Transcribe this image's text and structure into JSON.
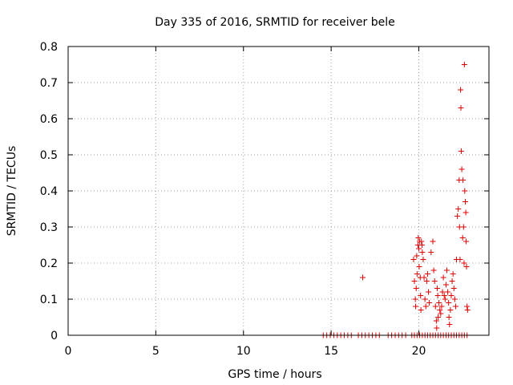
{
  "chart_data": {
    "type": "scatter",
    "title": "Day 335 of 2016, SRMTID for receiver bele",
    "xlabel": "GPS time / hours",
    "ylabel": "SRMTID / TECUs",
    "xlim": [
      0,
      24
    ],
    "ylim": [
      0,
      0.8
    ],
    "xticks": [
      0,
      5,
      10,
      15,
      20
    ],
    "xtick_labels": [
      "0",
      "5",
      "10",
      "15",
      "20"
    ],
    "yticks": [
      0,
      0.1,
      0.2,
      0.3,
      0.4,
      0.5,
      0.6,
      0.7,
      0.8
    ],
    "ytick_labels": [
      "0",
      "0.1",
      "0.2",
      "0.3",
      "0.4",
      "0.5",
      "0.6",
      "0.7",
      "0.8"
    ],
    "grid": true,
    "marker": "+",
    "color": "#e00000",
    "series": [
      {
        "name": "SRMTID",
        "points": [
          [
            14.55,
            0
          ],
          [
            14.75,
            0
          ],
          [
            14.95,
            0
          ],
          [
            15.15,
            0
          ],
          [
            15.35,
            0
          ],
          [
            15.55,
            0
          ],
          [
            15.75,
            0
          ],
          [
            15.95,
            0
          ],
          [
            16.15,
            0
          ],
          [
            16.55,
            0
          ],
          [
            16.75,
            0
          ],
          [
            16.95,
            0
          ],
          [
            17.15,
            0
          ],
          [
            17.35,
            0
          ],
          [
            17.55,
            0
          ],
          [
            17.75,
            0
          ],
          [
            18.25,
            0
          ],
          [
            18.45,
            0
          ],
          [
            18.65,
            0
          ],
          [
            18.85,
            0
          ],
          [
            19.05,
            0
          ],
          [
            19.25,
            0
          ],
          [
            19.6,
            0
          ],
          [
            19.75,
            0
          ],
          [
            19.9,
            0
          ],
          [
            20.05,
            0
          ],
          [
            20.2,
            0
          ],
          [
            20.35,
            0
          ],
          [
            20.5,
            0
          ],
          [
            20.65,
            0
          ],
          [
            20.8,
            0
          ],
          [
            20.95,
            0
          ],
          [
            21.1,
            0
          ],
          [
            21.25,
            0
          ],
          [
            21.4,
            0
          ],
          [
            21.55,
            0
          ],
          [
            21.7,
            0
          ],
          [
            21.85,
            0
          ],
          [
            22.0,
            0
          ],
          [
            22.15,
            0
          ],
          [
            22.3,
            0
          ],
          [
            22.45,
            0
          ],
          [
            22.6,
            0
          ],
          [
            22.75,
            0
          ],
          [
            16.8,
            0.16
          ],
          [
            19.7,
            0.21
          ],
          [
            19.75,
            0.15
          ],
          [
            19.8,
            0.1
          ],
          [
            19.82,
            0.08
          ],
          [
            19.85,
            0.13
          ],
          [
            19.88,
            0.22
          ],
          [
            19.9,
            0.17
          ],
          [
            19.95,
            0.25
          ],
          [
            19.97,
            0.27
          ],
          [
            20.0,
            0.24
          ],
          [
            20.02,
            0.19
          ],
          [
            20.05,
            0.26
          ],
          [
            20.08,
            0.16
          ],
          [
            20.1,
            0.11
          ],
          [
            20.12,
            0.07
          ],
          [
            20.15,
            0.26
          ],
          [
            20.18,
            0.25
          ],
          [
            20.2,
            0.23
          ],
          [
            20.25,
            0.21
          ],
          [
            20.3,
            0.16
          ],
          [
            20.35,
            0.1
          ],
          [
            20.4,
            0.08
          ],
          [
            20.45,
            0.15
          ],
          [
            20.5,
            0.17
          ],
          [
            20.55,
            0.12
          ],
          [
            20.6,
            0.09
          ],
          [
            20.7,
            0.23
          ],
          [
            20.8,
            0.26
          ],
          [
            20.85,
            0.18
          ],
          [
            20.9,
            0.15
          ],
          [
            20.95,
            0.08
          ],
          [
            21.0,
            0.04
          ],
          [
            21.02,
            0.02
          ],
          [
            21.05,
            0.13
          ],
          [
            21.08,
            0.11
          ],
          [
            21.1,
            0.05
          ],
          [
            21.15,
            0.09
          ],
          [
            21.2,
            0.07
          ],
          [
            21.25,
            0.06
          ],
          [
            21.3,
            0.08
          ],
          [
            21.35,
            0.12
          ],
          [
            21.4,
            0.16
          ],
          [
            21.45,
            0.11
          ],
          [
            21.5,
            0.1
          ],
          [
            21.55,
            0.14
          ],
          [
            21.6,
            0.18
          ],
          [
            21.65,
            0.12
          ],
          [
            21.7,
            0.09
          ],
          [
            21.72,
            0.05
          ],
          [
            21.75,
            0.03
          ],
          [
            21.8,
            0.07
          ],
          [
            21.85,
            0.11
          ],
          [
            21.9,
            0.15
          ],
          [
            21.95,
            0.17
          ],
          [
            22.0,
            0.13
          ],
          [
            22.05,
            0.1
          ],
          [
            22.1,
            0.08
          ],
          [
            22.15,
            0.21
          ],
          [
            22.2,
            0.33
          ],
          [
            22.25,
            0.35
          ],
          [
            22.3,
            0.43
          ],
          [
            22.32,
            0.3
          ],
          [
            22.35,
            0.21
          ],
          [
            22.38,
            0.68
          ],
          [
            22.4,
            0.63
          ],
          [
            22.42,
            0.51
          ],
          [
            22.45,
            0.46
          ],
          [
            22.5,
            0.27
          ],
          [
            22.52,
            0.43
          ],
          [
            22.55,
            0.3
          ],
          [
            22.58,
            0.2
          ],
          [
            22.6,
            0.75
          ],
          [
            22.62,
            0.4
          ],
          [
            22.65,
            0.37
          ],
          [
            22.68,
            0.34
          ],
          [
            22.7,
            0.26
          ],
          [
            22.72,
            0.19
          ],
          [
            22.75,
            0.08
          ],
          [
            22.78,
            0.07
          ]
        ]
      }
    ]
  }
}
